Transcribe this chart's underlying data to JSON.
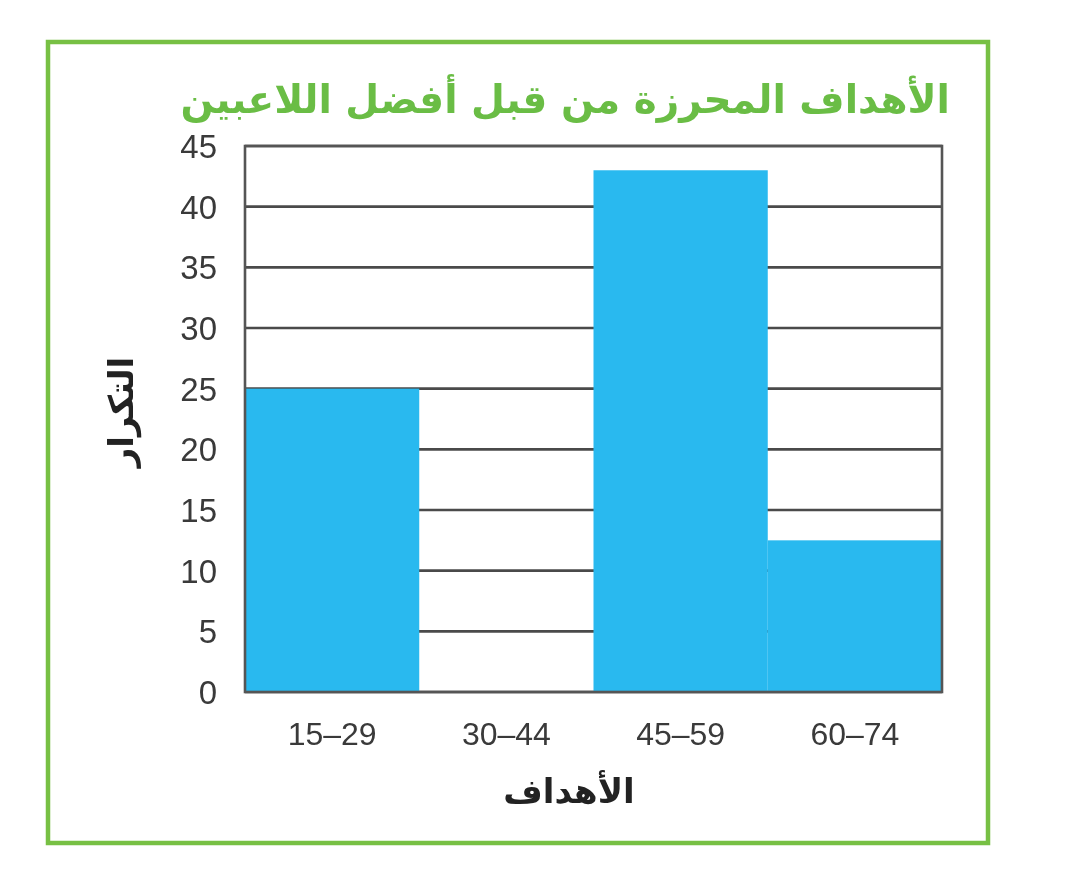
{
  "chart_data": {
    "type": "bar",
    "title": "الأهداف المحرزة من قبل أفضل اللاعبين",
    "xlabel": "الأهداف",
    "ylabel": "التكرار",
    "categories": [
      "15–29",
      "30–44",
      "45–59",
      "60–74"
    ],
    "values": [
      25,
      0,
      43,
      12.5
    ],
    "color": "#29b9ef",
    "ylim": [
      0,
      45
    ],
    "yticks": [
      0,
      5,
      10,
      15,
      20,
      25,
      30,
      35,
      40,
      45
    ],
    "grid": "y"
  }
}
